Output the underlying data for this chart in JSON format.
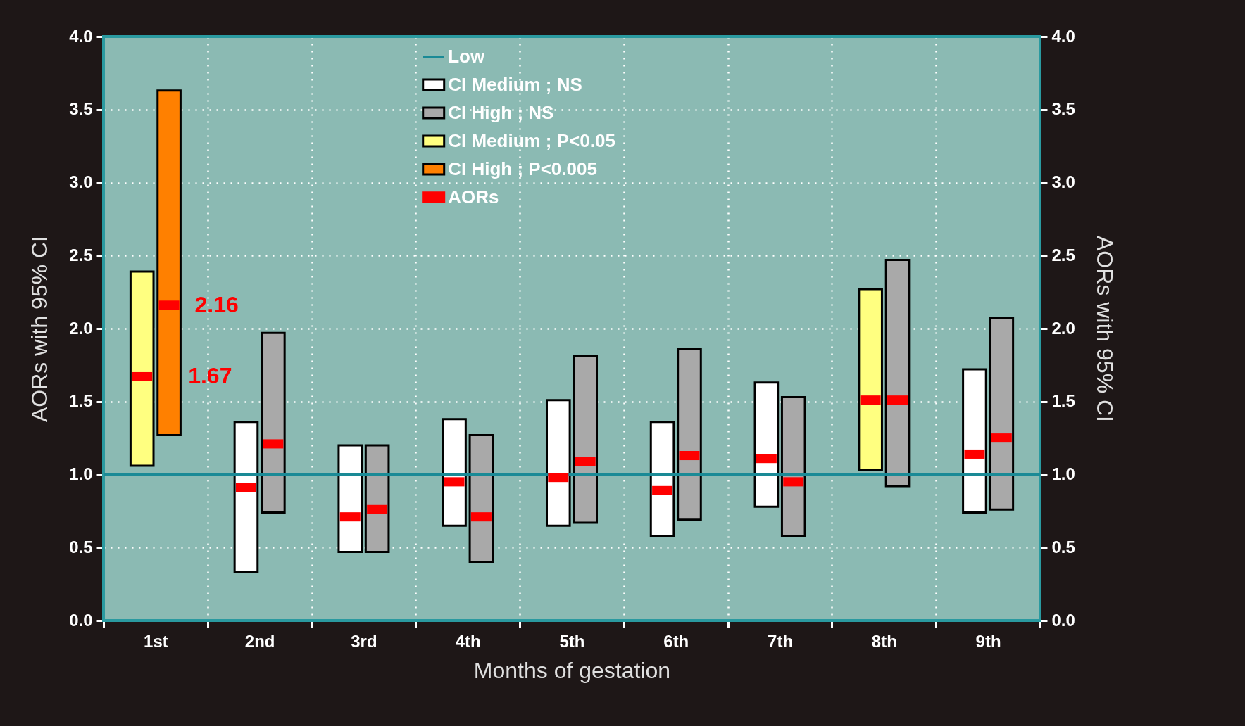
{
  "chart_data": {
    "type": "bar",
    "xlabel": "Months of gestation",
    "ylabel": "AORs with 95% CI",
    "y2label": "AORs with 95% CI",
    "categories": [
      "1st",
      "2nd",
      "3rd",
      "4th",
      "5th",
      "6th",
      "7th",
      "8th",
      "9th"
    ],
    "ylim": [
      0,
      4
    ],
    "yticks": [
      {
        "value": 0,
        "label": "0.0"
      },
      {
        "value": 0.5,
        "label": "0.5"
      },
      {
        "value": 1,
        "label": "1.0"
      },
      {
        "value": 1.5,
        "label": "1.5"
      },
      {
        "value": 2,
        "label": "2.0"
      },
      {
        "value": 2.5,
        "label": "2.5"
      },
      {
        "value": 3,
        "label": "3.0"
      },
      {
        "value": 3.5,
        "label": "3.5"
      },
      {
        "value": 4,
        "label": "4.0"
      }
    ],
    "y2lim": [
      0,
      4
    ],
    "y2ticks": [
      {
        "value": 0,
        "label": "0.0"
      },
      {
        "value": 0.5,
        "label": "0.5"
      },
      {
        "value": 1,
        "label": "1.0"
      },
      {
        "value": 1.5,
        "label": "1.5"
      },
      {
        "value": 2,
        "label": "2.0"
      },
      {
        "value": 2.5,
        "label": "2.5"
      },
      {
        "value": 3,
        "label": "3.0"
      },
      {
        "value": 3.5,
        "label": "3.5"
      },
      {
        "value": 4,
        "label": "4.0"
      }
    ],
    "grid": true,
    "legend": "top",
    "ref_lines": [
      {
        "axis": "y",
        "value": 1,
        "label": "Low",
        "color": "#1a8a96"
      }
    ],
    "series": [
      {
        "name": "CI Medium ; NS",
        "color": "#ffffff",
        "base": [
          null,
          0.33,
          0.47,
          0.65,
          0.65,
          0.58,
          0.78,
          null,
          0.74
        ],
        "values": [
          null,
          1.03,
          0.73,
          0.73,
          0.86,
          0.78,
          0.85,
          null,
          0.98
        ]
      },
      {
        "name": "CI High ; NS",
        "color": "#a9a9a9",
        "base": [
          null,
          0.74,
          0.47,
          0.4,
          0.67,
          0.69,
          0.58,
          0.92,
          0.76
        ],
        "values": [
          null,
          1.23,
          0.73,
          0.87,
          1.14,
          1.17,
          0.95,
          1.55,
          1.31
        ]
      },
      {
        "name": "CI Medium ; P<0.05",
        "color": "#ffff80",
        "base": [
          1.06,
          null,
          null,
          null,
          null,
          null,
          null,
          1.03,
          null
        ],
        "values": [
          1.33,
          null,
          null,
          null,
          null,
          null,
          null,
          1.24,
          null
        ]
      },
      {
        "name": "CI High ; P<0.005",
        "color": "#ff8000",
        "base": [
          1.27,
          null,
          null,
          null,
          null,
          null,
          null,
          null,
          null
        ],
        "values": [
          2.36,
          null,
          null,
          null,
          null,
          null,
          null,
          null,
          null
        ]
      },
      {
        "name": "AORs",
        "type": "scatter",
        "color": "#ff0000",
        "values": [
          1.67,
          0.91,
          0.71,
          0.95,
          0.98,
          0.89,
          1.11,
          1.51,
          1.14
        ],
        "value_labels": [
          "1.67",
          null,
          null,
          null,
          null,
          null,
          null,
          null,
          null
        ]
      },
      {
        "type": "scatter",
        "color": "#ff0000",
        "values": [
          2.16,
          1.21,
          0.76,
          0.71,
          1.09,
          1.13,
          0.95,
          1.51,
          1.25
        ],
        "value_labels": [
          "2.16",
          null,
          null,
          null,
          null,
          null,
          null,
          null,
          null
        ]
      }
    ]
  }
}
